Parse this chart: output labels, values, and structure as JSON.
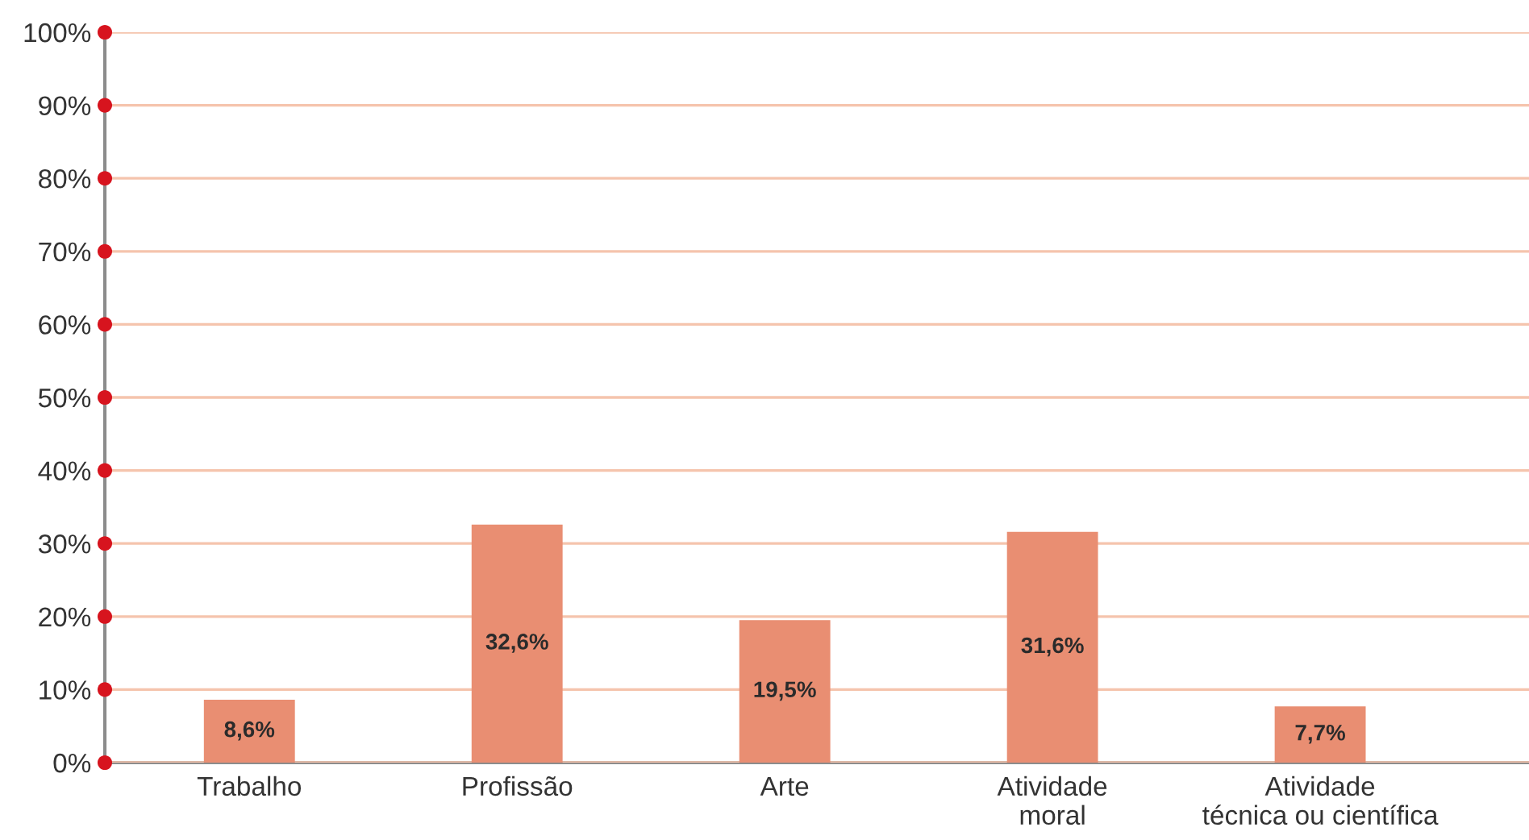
{
  "chart_data": {
    "type": "bar",
    "categories": [
      "Trabalho",
      "Profissão",
      "Arte",
      "Atividade\nmoral",
      "Atividade\ntécnica ou científica"
    ],
    "values": [
      8.6,
      32.6,
      19.5,
      31.6,
      7.7
    ],
    "value_labels": [
      "8,6%",
      "32,6%",
      "19,5%",
      "31,6%",
      "7,7%"
    ],
    "color": "#e98e72",
    "ylim": [
      0,
      100
    ],
    "yticks": [
      {
        "value": 0,
        "label": "0%"
      },
      {
        "value": 10,
        "label": "10%"
      },
      {
        "value": 20,
        "label": "20%"
      },
      {
        "value": 30,
        "label": "30%"
      },
      {
        "value": 40,
        "label": "40%"
      },
      {
        "value": 50,
        "label": "50%"
      },
      {
        "value": 60,
        "label": "60%"
      },
      {
        "value": 70,
        "label": "70%"
      },
      {
        "value": 80,
        "label": "80%"
      },
      {
        "value": 90,
        "label": "90%"
      },
      {
        "value": 100,
        "label": "100%"
      }
    ],
    "grid": "y",
    "legend": false
  }
}
